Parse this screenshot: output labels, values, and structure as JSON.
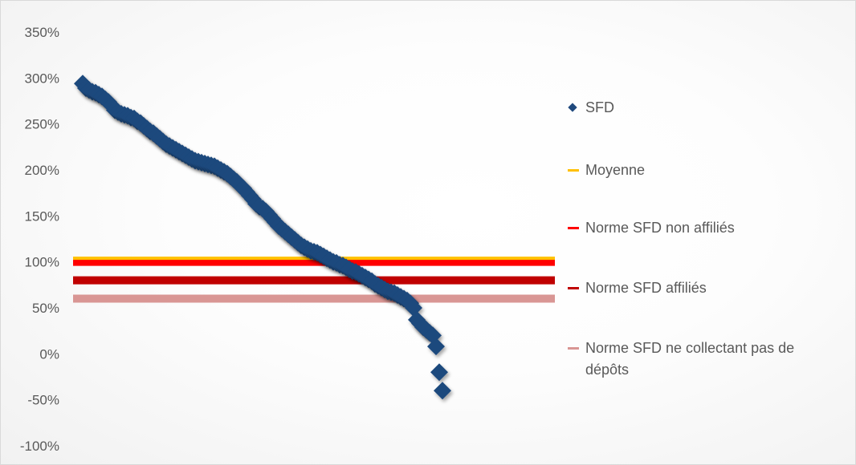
{
  "chart_data": {
    "type": "scatter",
    "title": "",
    "xlabel": "",
    "ylabel": "",
    "y_ticks": [
      "350%",
      "300%",
      "250%",
      "200%",
      "150%",
      "100%",
      "50%",
      "0%",
      "-50%",
      "-100%"
    ],
    "ylim": [
      -100,
      350
    ],
    "xlim": [
      0,
      150
    ],
    "grid": false,
    "legend_position": "right",
    "series": [
      {
        "name": "SFD",
        "kind": "marker",
        "marker": "diamond",
        "color": "#1f497d",
        "points": [
          [
            3,
            294
          ],
          [
            4,
            289
          ],
          [
            5,
            287
          ],
          [
            6,
            285
          ],
          [
            7,
            284
          ],
          [
            8,
            282
          ],
          [
            9,
            280
          ],
          [
            10,
            277
          ],
          [
            11,
            274
          ],
          [
            12,
            270
          ],
          [
            13,
            265
          ],
          [
            14,
            263
          ],
          [
            15,
            261
          ],
          [
            16,
            260
          ],
          [
            17,
            259
          ],
          [
            18,
            257
          ],
          [
            19,
            256
          ],
          [
            20,
            253
          ],
          [
            21,
            251
          ],
          [
            22,
            248
          ],
          [
            23,
            245
          ],
          [
            24,
            242
          ],
          [
            25,
            240
          ],
          [
            26,
            237
          ],
          [
            27,
            234
          ],
          [
            28,
            231
          ],
          [
            29,
            228
          ],
          [
            30,
            226
          ],
          [
            31,
            224
          ],
          [
            32,
            222
          ],
          [
            33,
            220
          ],
          [
            34,
            218
          ],
          [
            35,
            216
          ],
          [
            36,
            214
          ],
          [
            37,
            212
          ],
          [
            38,
            210
          ],
          [
            39,
            209
          ],
          [
            40,
            208
          ],
          [
            41,
            207
          ],
          [
            42,
            206
          ],
          [
            43,
            205
          ],
          [
            44,
            204
          ],
          [
            45,
            202
          ],
          [
            46,
            200
          ],
          [
            47,
            198
          ],
          [
            48,
            196
          ],
          [
            49,
            193
          ],
          [
            50,
            190
          ],
          [
            51,
            187
          ],
          [
            52,
            183
          ],
          [
            53,
            180
          ],
          [
            54,
            176
          ],
          [
            55,
            172
          ],
          [
            56,
            168
          ],
          [
            57,
            163
          ],
          [
            58,
            160
          ],
          [
            59,
            158
          ],
          [
            60,
            155
          ],
          [
            61,
            151
          ],
          [
            62,
            147
          ],
          [
            63,
            143
          ],
          [
            64,
            139
          ],
          [
            65,
            136
          ],
          [
            66,
            133
          ],
          [
            67,
            130
          ],
          [
            68,
            127
          ],
          [
            69,
            124
          ],
          [
            70,
            121
          ],
          [
            71,
            118
          ],
          [
            72,
            116
          ],
          [
            73,
            114
          ],
          [
            74,
            112
          ],
          [
            75,
            111
          ],
          [
            76,
            110
          ],
          [
            77,
            108
          ],
          [
            78,
            106
          ],
          [
            79,
            104
          ],
          [
            80,
            102
          ],
          [
            81,
            100
          ],
          [
            82,
            99
          ],
          [
            83,
            97
          ],
          [
            84,
            96
          ],
          [
            85,
            94
          ],
          [
            86,
            92
          ],
          [
            87,
            90
          ],
          [
            88,
            89
          ],
          [
            89,
            87
          ],
          [
            90,
            85
          ],
          [
            91,
            83
          ],
          [
            92,
            81
          ],
          [
            93,
            79
          ],
          [
            94,
            76
          ],
          [
            95,
            74
          ],
          [
            96,
            72
          ],
          [
            97,
            70
          ],
          [
            98,
            68
          ],
          [
            99,
            67
          ],
          [
            100,
            66
          ],
          [
            101,
            64
          ],
          [
            102,
            62
          ],
          [
            103,
            60
          ],
          [
            104,
            58
          ],
          [
            105,
            55
          ],
          [
            106,
            50
          ],
          [
            107,
            37
          ],
          [
            108,
            33
          ],
          [
            109,
            29
          ],
          [
            110,
            26
          ],
          [
            111,
            23
          ],
          [
            112,
            20
          ],
          [
            113,
            8
          ],
          [
            114,
            -20
          ],
          [
            115,
            -40
          ]
        ]
      },
      {
        "name": "Moyenne",
        "kind": "hline",
        "y": 104,
        "color": "#ffc000",
        "width": 4
      },
      {
        "name": "Norme SFD non affiliés",
        "kind": "hline",
        "y": 100,
        "color": "#ff0000",
        "width": 10
      },
      {
        "name": "Norme SFD affiliés",
        "kind": "hline",
        "y": 80,
        "color": "#c00000",
        "width": 10
      },
      {
        "name": "Norme SFD ne collectant pas de dépôts",
        "kind": "hline",
        "y": 60,
        "color": "#d99694",
        "width": 10
      }
    ]
  },
  "legend": {
    "items": [
      {
        "label": "SFD",
        "key": "marker",
        "color": "#1f497d"
      },
      {
        "label": "Moyenne",
        "key": "line",
        "color": "#ffc000"
      },
      {
        "label": "Norme SFD non affiliés",
        "key": "line",
        "color": "#ff0000"
      },
      {
        "label": "Norme SFD affiliés",
        "key": "line",
        "color": "#c00000"
      },
      {
        "label": "Norme SFD ne collectant pas de dépôts",
        "key": "line",
        "color": "#d99694"
      }
    ]
  }
}
